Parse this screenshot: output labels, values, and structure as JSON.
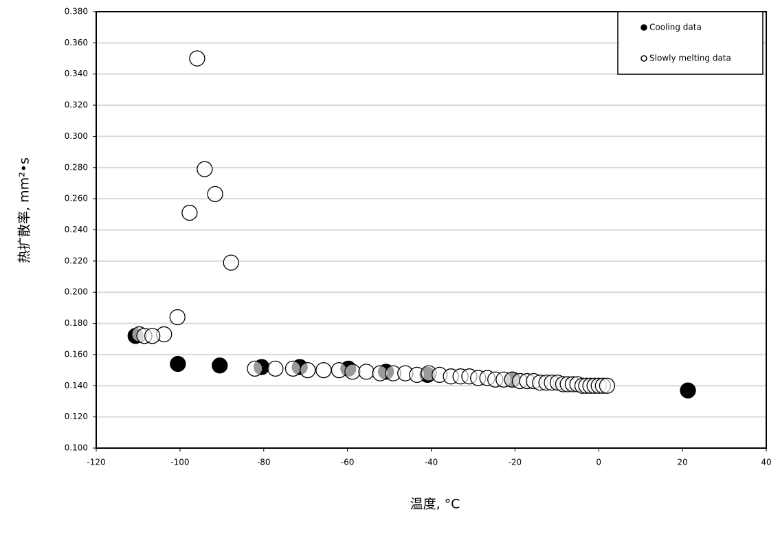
{
  "chart_data": {
    "type": "scatter",
    "x_label": "温度, °C",
    "y_label": "热扩散率, mm²•s",
    "xlim": [
      -120,
      40
    ],
    "xticks": [
      -120,
      -100,
      -80,
      -60,
      -40,
      -20,
      0,
      20,
      40
    ],
    "ylim": [
      0.1,
      0.38
    ],
    "yticks": [
      {
        "value": 0.1,
        "label": "0.100"
      },
      {
        "value": 0.12,
        "label": "0.120"
      },
      {
        "value": 0.14,
        "label": "0.140"
      },
      {
        "value": 0.16,
        "label": "0.160"
      },
      {
        "value": 0.18,
        "label": "0.180"
      },
      {
        "value": 0.2,
        "label": "0.200"
      },
      {
        "value": 0.22,
        "label": "0.220"
      },
      {
        "value": 0.24,
        "label": "0.240"
      },
      {
        "value": 0.26,
        "label": "0.260"
      },
      {
        "value": 0.28,
        "label": "0.280"
      },
      {
        "value": 0.3,
        "label": "0.300"
      },
      {
        "value": 0.32,
        "label": "0.320"
      },
      {
        "value": 0.34,
        "label": "0.340"
      },
      {
        "value": 0.36,
        "label": "0.360"
      },
      {
        "value": 0.38,
        "label": "0.380"
      }
    ],
    "grid": true,
    "legend": "upper right",
    "series": [
      {
        "name": "Cooling data",
        "color": "#000000",
        "filled": true,
        "x": [
          -110.6,
          -100.5,
          -90.5,
          -80.5,
          -71.4,
          -59.8,
          -50.8,
          -40.9,
          -20.6,
          21.3
        ],
        "values": [
          0.172,
          0.154,
          0.153,
          0.152,
          0.152,
          0.151,
          0.149,
          0.147,
          0.144,
          0.137
        ]
      },
      {
        "name": "Slowly melting data",
        "color": "#000000",
        "filled": false,
        "x": [
          -95.9,
          -94.1,
          -91.6,
          -97.7,
          -87.8,
          -100.6,
          -103.8,
          -109.7,
          -108.5,
          -106.6,
          -82.1,
          -77.2,
          -73,
          -69.5,
          -65.7,
          -62,
          -58.8,
          -55.5,
          -52.2,
          -49.1,
          -46.2,
          -43.4,
          -40.6,
          -38,
          -35.3,
          -33,
          -30.9,
          -28.8,
          -26.6,
          -24.7,
          -22.7,
          -20.7,
          -18.8,
          -17.1,
          -15.5,
          -14,
          -12.5,
          -11.2,
          -9.8,
          -8.5,
          -7.4,
          -6.2,
          -5.1,
          -3.9,
          -3,
          -2,
          -1,
          0,
          1,
          2
        ],
        "values": [
          0.35,
          0.279,
          0.263,
          0.251,
          0.219,
          0.184,
          0.173,
          0.173,
          0.172,
          0.172,
          0.151,
          0.151,
          0.151,
          0.15,
          0.15,
          0.15,
          0.149,
          0.149,
          0.148,
          0.148,
          0.148,
          0.147,
          0.148,
          0.147,
          0.146,
          0.146,
          0.146,
          0.145,
          0.145,
          0.144,
          0.144,
          0.144,
          0.143,
          0.143,
          0.143,
          0.142,
          0.142,
          0.142,
          0.142,
          0.141,
          0.141,
          0.141,
          0.141,
          0.14,
          0.14,
          0.14,
          0.14,
          0.14,
          0.14,
          0.14
        ]
      }
    ]
  }
}
